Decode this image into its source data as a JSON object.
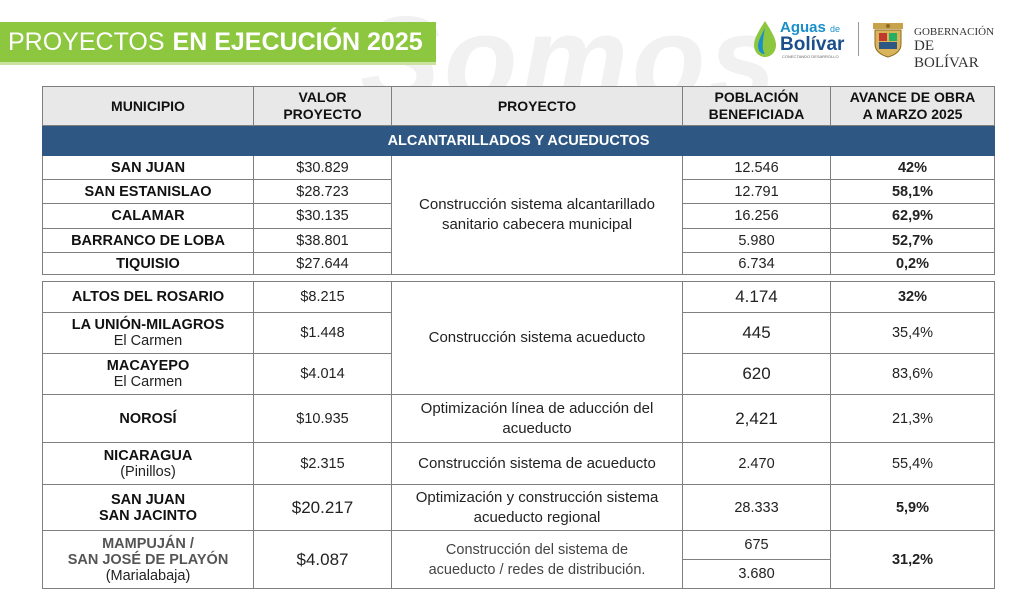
{
  "header": {
    "title_part1": "PROYECTOS",
    "title_part2": "EN EJECUCIÓN 2025",
    "watermark": "Somos",
    "logo_aguas": {
      "line1": "Aguas",
      "de": "de",
      "line2": "Bolívar",
      "tagline": "CONECTANDO DESARROLLO"
    },
    "logo_gob": {
      "line1": "GOBERNACIÓN",
      "line2": "DE BOLÍVAR"
    },
    "colors": {
      "banner": "#8dc63f",
      "section": "#2e5883"
    }
  },
  "table": {
    "headers": {
      "municipio": "MUNICIPIO",
      "valor_1": "VALOR",
      "valor_2": "PROYECTO",
      "proyecto": "PROYECTO",
      "poblacion_1": "POBLACIÓN",
      "poblacion_2": "BENEFICIADA",
      "avance_1": "AVANCE DE OBRA",
      "avance_2": "A MARZO 2025"
    },
    "section_title": "ALCANTARILLADOS Y ACUEDUCTOS",
    "group1": {
      "project_1": "Construcción sistema alcantarillado",
      "project_2": "sanitario cabecera municipal",
      "rows": [
        {
          "municipio": "SAN JUAN",
          "valor": "$30.829",
          "poblacion": "12.546",
          "avance": "42%"
        },
        {
          "municipio": "SAN ESTANISLAO",
          "valor": "$28.723",
          "poblacion": "12.791",
          "avance": "58,1%"
        },
        {
          "municipio": "CALAMAR",
          "valor": "$30.135",
          "poblacion": "16.256",
          "avance": "62,9%"
        },
        {
          "municipio": "BARRANCO DE LOBA",
          "valor": "$38.801",
          "poblacion": "5.980",
          "avance": "52,7%"
        },
        {
          "municipio": "TIQUISIO",
          "valor": "$27.644",
          "poblacion": "6.734",
          "avance": "0,2%"
        }
      ]
    },
    "group2": {
      "project": "Construcción sistema acueducto",
      "rows": [
        {
          "municipio": "ALTOS DEL ROSARIO",
          "sub": "",
          "valor": "$8.215",
          "poblacion": "4.174",
          "avance": "32%"
        },
        {
          "municipio": "LA UNIÓN-MILAGROS",
          "sub": "El Carmen",
          "valor": "$1.448",
          "poblacion": "445",
          "avance": "35,4%"
        },
        {
          "municipio": "MACAYEPO",
          "sub": "El Carmen",
          "valor": "$4.014",
          "poblacion": "620",
          "avance": "83,6%"
        }
      ]
    },
    "row_norosi": {
      "municipio": "NOROSÍ",
      "valor": "$10.935",
      "project_1": "Optimización línea de aducción del",
      "project_2": "acueducto",
      "poblacion": "2,421",
      "avance": "21,3%"
    },
    "row_nicaragua": {
      "municipio": "NICARAGUA",
      "sub": "(Pinillos)",
      "valor": "$2.315",
      "project": "Construcción sistema de acueducto",
      "poblacion": "2.470",
      "avance": "55,4%"
    },
    "row_sanjuan2": {
      "municipio_1": "SAN JUAN",
      "municipio_2": "SAN JACINTO",
      "valor": "$20.217",
      "project_1": "Optimización y construcción sistema",
      "project_2": "acueducto regional",
      "poblacion": "28.333",
      "avance": "5,9%"
    },
    "row_mampujan": {
      "municipio_1": "MAMPUJÁN /",
      "municipio_2": "SAN JOSÉ DE PLAYÓN",
      "sub": "(Marialabaja)",
      "valor": "$4.087",
      "project_1": "Construcción del sistema de",
      "project_2": "acueducto / redes de distribución.",
      "poblacion_1": "675",
      "poblacion_2": "3.680",
      "avance": "31,2%"
    }
  }
}
